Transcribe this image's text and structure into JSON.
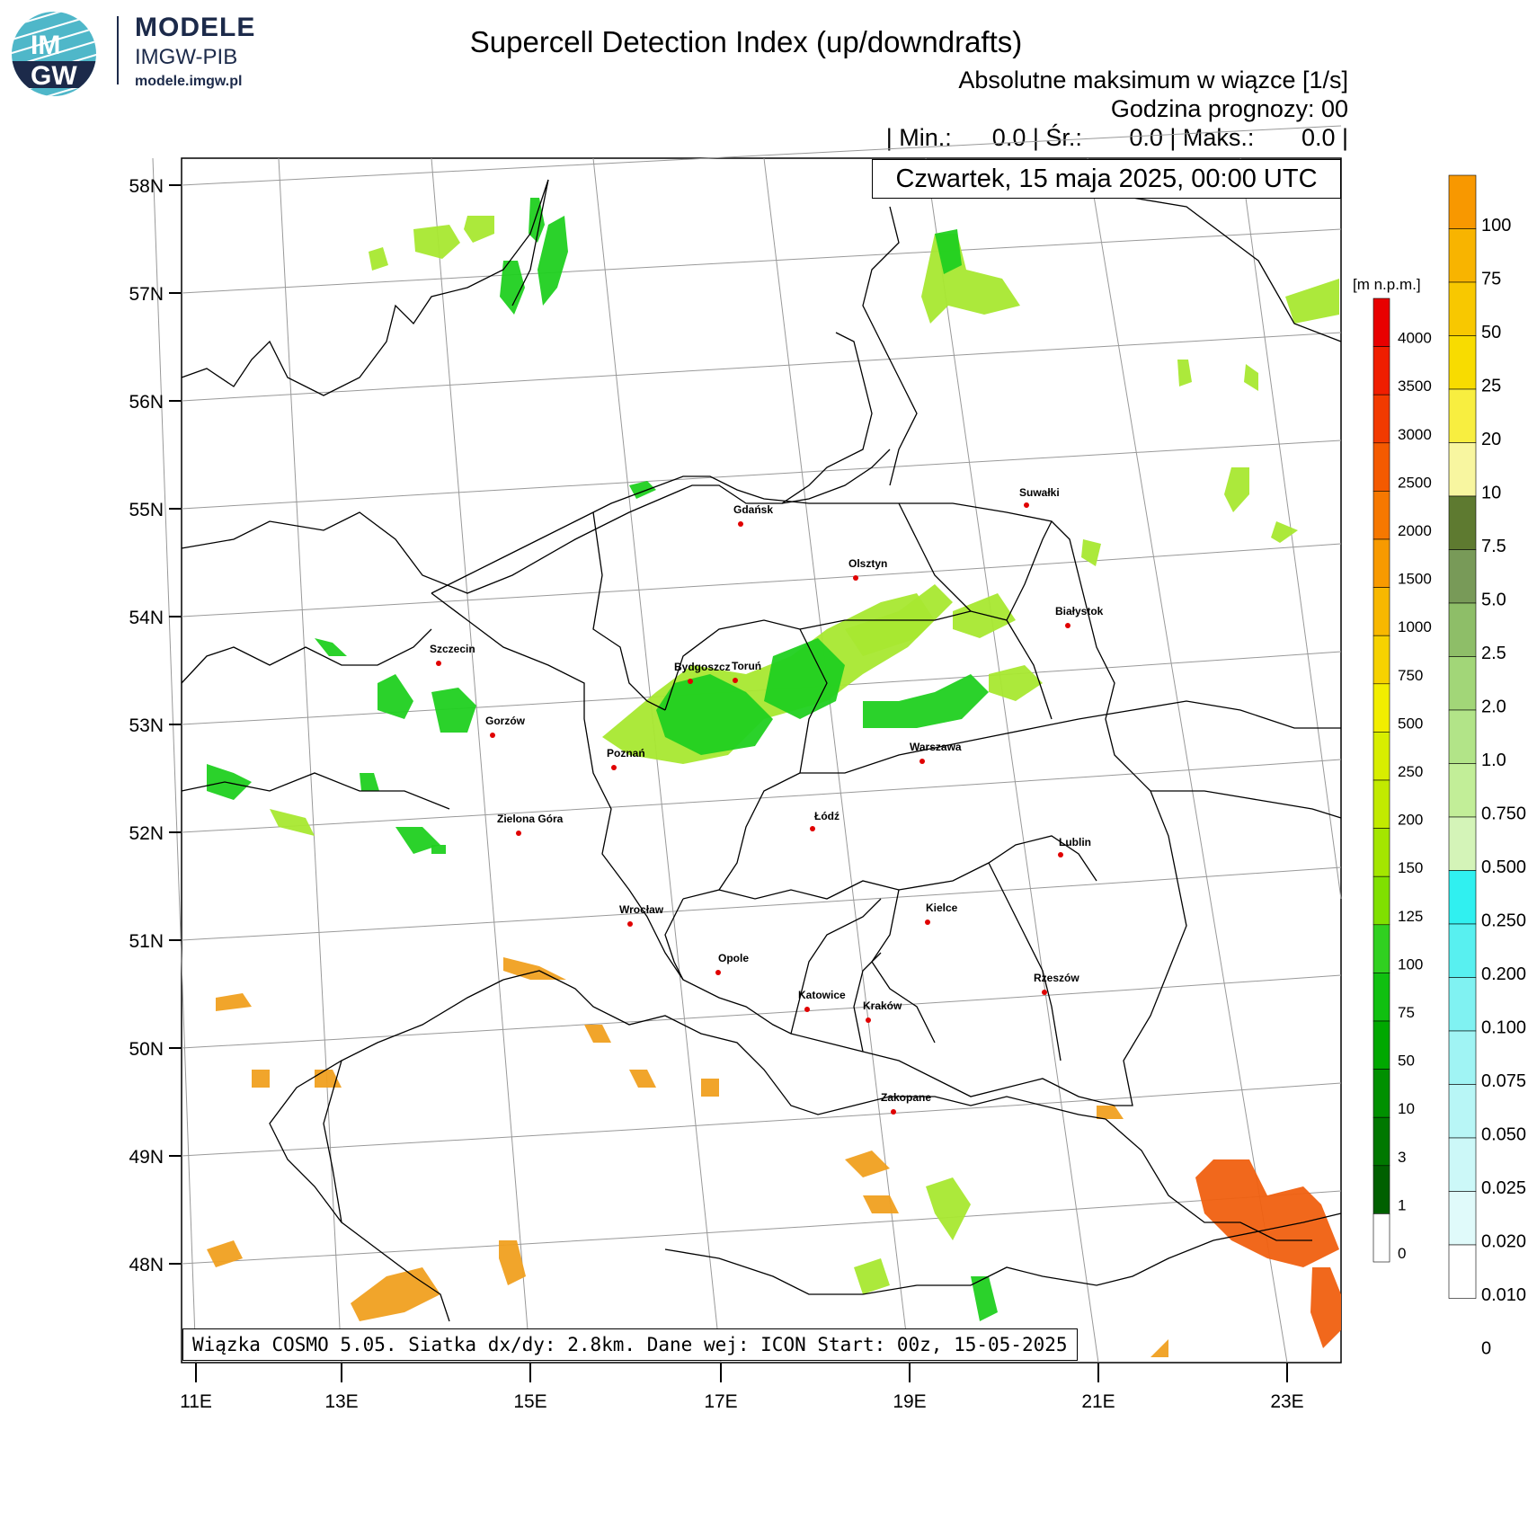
{
  "branding": {
    "logo_text_top": "IM",
    "logo_text_bottom": "GW",
    "title": "MODELE",
    "subtitle": "IMGW-PIB",
    "url": "modele.imgw.pl"
  },
  "header": {
    "title": "Supercell Detection Index (up/downdrafts)",
    "subtitle": "Absolutne maksimum w wiązce [1/s]",
    "forecast_hour": "Godzina prognozy: 00",
    "stats_line": "| Min.:      0.0 | Śr.:       0.0 | Maks.:       0.0 |",
    "datetime": "Czwartek, 15 maja 2025, 00:00 UTC"
  },
  "footer": {
    "model_info": "Wiązka COSMO 5.05. Siatka dx/dy: 2.8km. Dane wej: ICON Start: 00z, 15-05-2025"
  },
  "axes": {
    "lat_labels": [
      "58N",
      "57N",
      "56N",
      "55N",
      "54N",
      "53N",
      "52N",
      "51N",
      "50N",
      "49N",
      "48N"
    ],
    "lon_labels": [
      "11E",
      "13E",
      "15E",
      "17E",
      "19E",
      "21E",
      "23E"
    ]
  },
  "cities": [
    {
      "name": "Gdańsk"
    },
    {
      "name": "Suwałki"
    },
    {
      "name": "Olsztyn"
    },
    {
      "name": "Białystok"
    },
    {
      "name": "Szczecin"
    },
    {
      "name": "Bydgoszcz"
    },
    {
      "name": "Toruń"
    },
    {
      "name": "Gorzów"
    },
    {
      "name": "Poznań"
    },
    {
      "name": "Warszawa"
    },
    {
      "name": "Zielona Góra"
    },
    {
      "name": "Łódź"
    },
    {
      "name": "Lublin"
    },
    {
      "name": "Wrocław"
    },
    {
      "name": "Kielce"
    },
    {
      "name": "Opole"
    },
    {
      "name": "Rzeszów"
    },
    {
      "name": "Katowice"
    },
    {
      "name": "Kraków"
    },
    {
      "name": "Zakopane"
    }
  ],
  "legend_terrain": {
    "unit": "[m n.p.m.]",
    "labels": [
      "4000",
      "3500",
      "3000",
      "2500",
      "2000",
      "1500",
      "1000",
      "750",
      "500",
      "250",
      "200",
      "150",
      "125",
      "100",
      "75",
      "50",
      "10",
      "3",
      "1",
      "0"
    ]
  },
  "legend_index": {
    "labels": [
      "100",
      "75",
      "50",
      "25",
      "20",
      "10",
      "7.5",
      "5.0",
      "2.5",
      "2.0",
      "1.0",
      "0.750",
      "0.500",
      "0.250",
      "0.200",
      "0.100",
      "0.075",
      "0.050",
      "0.025",
      "0.020",
      "0.010",
      "0"
    ]
  },
  "colors": {
    "grid": "#999999",
    "borders": "#000000",
    "city_dot": "#e00000",
    "green_strong": "#20d020",
    "green_light": "#a8e830",
    "orange": "#f0a020",
    "red_orange": "#f06010"
  }
}
